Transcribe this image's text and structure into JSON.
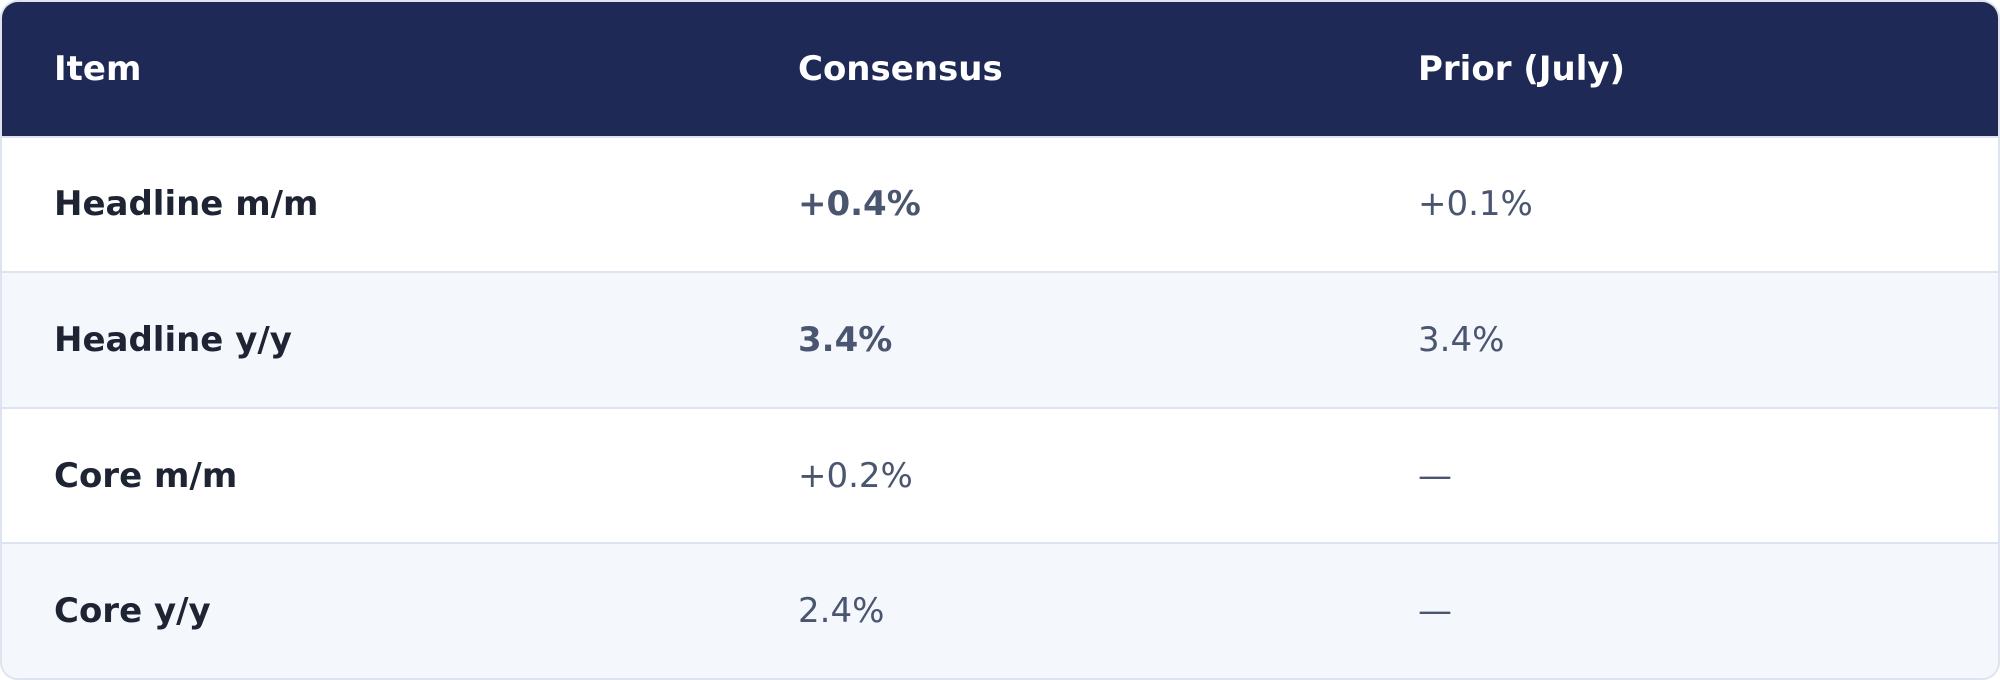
{
  "table": {
    "header": [
      "Item",
      "Consensus",
      "Prior (July)"
    ],
    "rows": [
      [
        "Headline m/m",
        "+0.4%",
        "+0.1%"
      ],
      [
        "Headline y/y",
        "3.4%",
        "3.4%"
      ],
      [
        "Core m/m",
        "+0.2%",
        "—"
      ],
      [
        "Core y/y",
        "2.4%",
        "—"
      ]
    ]
  }
}
